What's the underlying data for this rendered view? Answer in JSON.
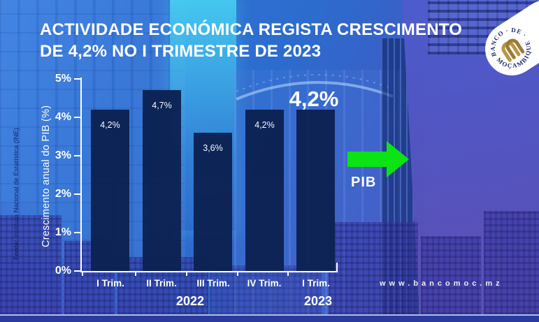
{
  "header": {
    "title_line1": "ACTIVIDADE ECONÓMICA REGISTA CRESCIMENTO",
    "title_line2": "DE 4,2% NO I TRIMESTRE DE 2023"
  },
  "logo": {
    "arc_top": "BANCO · DE ·",
    "arc_bottom": "MOÇAMBIQUE"
  },
  "source": {
    "label": "Fonte:",
    "text": " Instituto Nacional de Estatística (INE)"
  },
  "arrow": {
    "label": "PIB",
    "color": "#0be314"
  },
  "footer": {
    "website": "www.bancomoc.mz"
  },
  "chart_data": {
    "type": "bar",
    "title": "Actividade económica regista crescimento de 4,2% no I Trimestre de 2023",
    "categories": [
      "I Trim.",
      "II Trim.",
      "III Trim.",
      "IV Trim.",
      "I Trim."
    ],
    "group_years": [
      "2022",
      "2023"
    ],
    "values": [
      4.2,
      4.7,
      3.6,
      4.2,
      4.2
    ],
    "bar_labels": [
      "4,2%",
      "4,7%",
      "3,6%",
      "4,2%"
    ],
    "highlight_label": "4,2%",
    "xlabel": "",
    "ylabel": "Crescimento anual do PIB (%)",
    "ylim": [
      0,
      5
    ],
    "yticks": [
      "5%",
      "4%",
      "3%",
      "2%",
      "1%",
      "0%"
    ],
    "bar_color": "#0c2152",
    "grid": false,
    "legend": "none"
  }
}
